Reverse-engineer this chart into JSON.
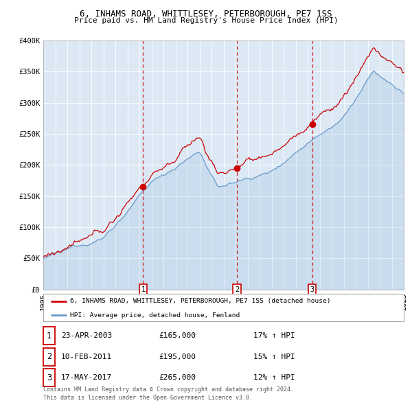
{
  "title": "6, INHAMS ROAD, WHITTLESEY, PETERBOROUGH, PE7 1SS",
  "subtitle": "Price paid vs. HM Land Registry's House Price Index (HPI)",
  "legend_label_red": "6, INHAMS ROAD, WHITTLESEY, PETERBOROUGH, PE7 1SS (detached house)",
  "legend_label_blue": "HPI: Average price, detached house, Fenland",
  "footer_line1": "Contains HM Land Registry data © Crown copyright and database right 2024.",
  "footer_line2": "This data is licensed under the Open Government Licence v3.0.",
  "transactions": [
    {
      "num": 1,
      "date": "23-APR-2003",
      "price": 165000,
      "pct": "17%",
      "dir": "↑"
    },
    {
      "num": 2,
      "date": "10-FEB-2011",
      "price": 195000,
      "pct": "15%",
      "dir": "↑"
    },
    {
      "num": 3,
      "date": "17-MAY-2017",
      "price": 265000,
      "pct": "12%",
      "dir": "↑"
    }
  ],
  "transaction_years": [
    2003.31,
    2011.11,
    2017.38
  ],
  "transaction_prices": [
    165000,
    195000,
    265000
  ],
  "ylim": [
    0,
    400000
  ],
  "ytick_values": [
    0,
    50000,
    100000,
    150000,
    200000,
    250000,
    300000,
    350000,
    400000
  ],
  "ytick_labels": [
    "£0",
    "£50K",
    "£100K",
    "£150K",
    "£200K",
    "£250K",
    "£300K",
    "£350K",
    "£400K"
  ],
  "xmin": 1995,
  "xmax": 2025,
  "background_color": "#dce9f5",
  "red_color": "#cc0000",
  "blue_color": "#6699cc",
  "grid_color": "#ffffff",
  "border_color": "#aaaaaa"
}
